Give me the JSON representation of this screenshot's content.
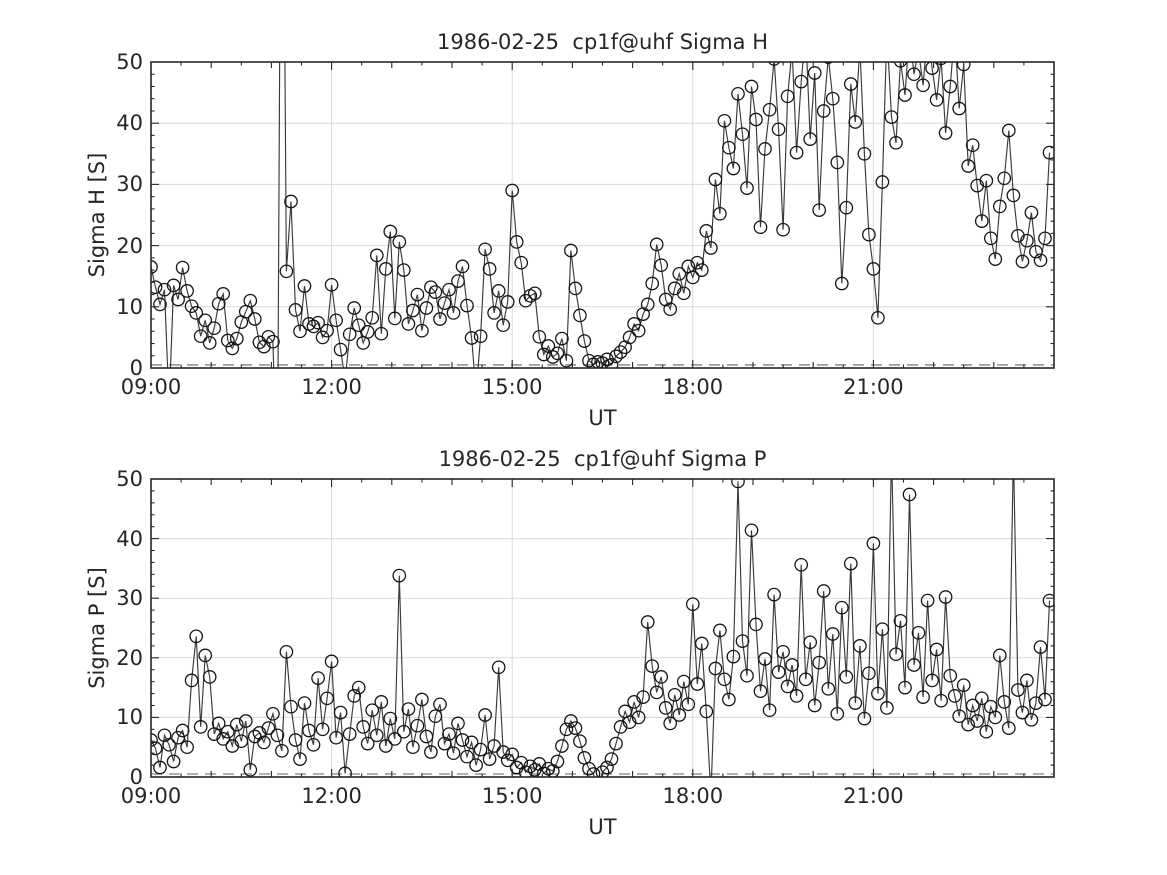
{
  "figure": {
    "background": "#ffffff"
  },
  "style": {
    "axis_color": "#262626",
    "text_color": "#262626",
    "grid_color": "#d9d9d9",
    "line_color": "#3a3a3a",
    "marker_color": "#151515",
    "baseline_color": "#808080",
    "background": "#ffffff"
  },
  "chart_data": [
    {
      "type": "line",
      "title": "1986-02-25  cp1f@uhf Sigma H",
      "xlabel": "UT",
      "ylabel": "Sigma H [S]",
      "xlim_hours": [
        9,
        24
      ],
      "ylim": [
        0,
        50
      ],
      "xticks": {
        "hours": [
          9,
          12,
          15,
          18,
          21
        ],
        "labels": [
          "09:00",
          "12:00",
          "15:00",
          "18:00",
          "21:00"
        ],
        "minor_step_hours": 0.5
      },
      "yticks": {
        "values": [
          0,
          10,
          20,
          30,
          40,
          50
        ],
        "labels": [
          "0",
          "10",
          "20",
          "30",
          "40",
          "50"
        ],
        "minor_step": 2
      },
      "grid": {
        "x_hours": [
          12,
          15,
          18,
          21
        ],
        "y_values": [
          10,
          20,
          30,
          40
        ]
      },
      "baseline_dashed_y": 0.5,
      "marker": "open-circle",
      "legend": null,
      "series": [
        {
          "name": "Sigma H",
          "x_start_hour": 9.0,
          "x_step_hours": 0.075,
          "y": [
            16.5,
            13.2,
            10.4,
            12.8,
            -6,
            13.5,
            11.2,
            16.4,
            12.6,
            10.1,
            9.0,
            5.2,
            7.8,
            4.1,
            6.5,
            10.5,
            12.1,
            4.5,
            3.2,
            4.8,
            7.5,
            9.2,
            11.0,
            8.0,
            4.2,
            3.5,
            5.1,
            4.3,
            -20,
            120,
            15.8,
            27.2,
            9.5,
            6.0,
            13.4,
            7.2,
            6.8,
            7.4,
            5.0,
            6.1,
            13.6,
            7.8,
            3.0,
            -2,
            5.5,
            9.8,
            7.0,
            4.1,
            5.9,
            8.2,
            18.4,
            5.6,
            16.2,
            22.3,
            8.1,
            20.6,
            16.0,
            7.2,
            9.4,
            12.0,
            6.1,
            9.8,
            13.2,
            12.4,
            8.0,
            10.6,
            12.8,
            9.0,
            14.2,
            16.6,
            10.2,
            4.9,
            -4,
            5.2,
            19.4,
            16.2,
            9.0,
            12.6,
            7.0,
            10.8,
            29.0,
            20.6,
            17.2,
            11.0,
            11.8,
            12.2,
            5.1,
            2.2,
            3.6,
            1.8,
            2.4,
            4.8,
            1.2,
            19.2,
            13.0,
            8.6,
            4.4,
            1.2,
            0.6,
            1.0,
            0.8,
            1.4,
            0.5,
            1.9,
            2.6,
            3.4,
            5.0,
            7.2,
            6.1,
            8.8,
            10.4,
            13.8,
            20.2,
            16.8,
            11.2,
            9.6,
            13.0,
            15.4,
            12.2,
            16.6,
            14.8,
            17.2,
            16.0,
            22.4,
            19.6,
            30.8,
            25.2,
            40.4,
            36.0,
            32.6,
            44.8,
            38.2,
            29.4,
            46.0,
            40.6,
            23.0,
            35.8,
            42.2,
            50.5,
            39.0,
            22.6,
            44.4,
            52.0,
            35.2,
            46.8,
            55.0,
            37.4,
            48.2,
            25.8,
            42.0,
            50.8,
            44.0,
            33.6,
            13.8,
            26.2,
            46.4,
            40.2,
            52.5,
            35.0,
            21.8,
            16.2,
            8.2,
            30.4,
            55.0,
            41.0,
            36.8,
            50.2,
            44.6,
            55.0,
            48.0,
            52.0,
            46.2,
            55.0,
            49.0,
            43.8,
            50.6,
            38.4,
            46.0,
            55.0,
            42.4,
            49.6,
            33.0,
            36.4,
            29.8,
            24.0,
            30.6,
            21.2,
            17.8,
            26.4,
            31.0,
            38.8,
            28.2,
            21.6,
            17.4,
            20.8,
            25.4,
            19.0,
            17.6,
            21.2,
            35.2
          ]
        }
      ]
    },
    {
      "type": "line",
      "title": "1986-02-25  cp1f@uhf Sigma P",
      "xlabel": "UT",
      "ylabel": "Sigma P [S]",
      "xlim_hours": [
        9,
        24
      ],
      "ylim": [
        0,
        50
      ],
      "xticks": {
        "hours": [
          9,
          12,
          15,
          18,
          21
        ],
        "labels": [
          "09:00",
          "12:00",
          "15:00",
          "18:00",
          "21:00"
        ],
        "minor_step_hours": 0.5
      },
      "yticks": {
        "values": [
          0,
          10,
          20,
          30,
          40,
          50
        ],
        "labels": [
          "0",
          "10",
          "20",
          "30",
          "40",
          "50"
        ],
        "minor_step": 2
      },
      "grid": {
        "x_hours": [
          12,
          15,
          18,
          21
        ],
        "y_values": [
          10,
          20,
          30,
          40
        ]
      },
      "baseline_dashed_y": 0.5,
      "marker": "open-circle",
      "legend": null,
      "series": [
        {
          "name": "Sigma P",
          "x_start_hour": 9.0,
          "x_step_hours": 0.075,
          "y": [
            6.2,
            4.8,
            1.6,
            7.0,
            5.4,
            2.6,
            6.6,
            7.8,
            5.0,
            16.2,
            23.6,
            8.4,
            20.4,
            16.8,
            7.2,
            9.0,
            6.4,
            7.6,
            5.2,
            8.8,
            6.0,
            9.4,
            1.2,
            6.8,
            7.4,
            5.8,
            8.2,
            10.6,
            7.0,
            4.4,
            21.0,
            11.8,
            6.2,
            3.0,
            12.4,
            7.8,
            5.4,
            16.6,
            8.0,
            13.2,
            19.4,
            6.6,
            10.8,
            0.6,
            7.2,
            13.6,
            15.0,
            8.4,
            5.6,
            11.2,
            7.0,
            12.6,
            5.2,
            9.8,
            6.4,
            33.8,
            7.6,
            11.4,
            5.0,
            8.6,
            13.0,
            6.8,
            4.2,
            10.2,
            12.2,
            5.6,
            7.2,
            4.0,
            9.0,
            6.2,
            3.4,
            5.8,
            2.0,
            4.6,
            10.4,
            3.0,
            5.2,
            18.4,
            4.2,
            2.8,
            3.8,
            1.6,
            2.4,
            0.8,
            1.8,
            1.2,
            2.2,
            0.6,
            1.4,
            1.0,
            2.6,
            5.2,
            8.0,
            9.4,
            8.2,
            6.0,
            3.2,
            1.4,
            0.5,
            -2,
            0.8,
            1.6,
            3.0,
            5.6,
            8.4,
            11.0,
            9.2,
            12.6,
            10.0,
            13.4,
            26.0,
            18.6,
            14.2,
            16.8,
            11.6,
            9.0,
            13.8,
            10.4,
            16.0,
            12.2,
            29.0,
            15.6,
            22.4,
            11.0,
            -3,
            18.2,
            24.6,
            16.4,
            13.0,
            20.2,
            49.6,
            22.8,
            17.0,
            41.4,
            25.6,
            14.4,
            19.8,
            11.2,
            30.6,
            17.6,
            21.0,
            15.2,
            18.8,
            13.6,
            35.6,
            16.4,
            22.6,
            12.0,
            19.2,
            31.2,
            14.8,
            24.0,
            10.6,
            28.4,
            16.8,
            35.8,
            12.4,
            22.0,
            9.8,
            17.4,
            39.2,
            14.0,
            24.8,
            11.6,
            55.0,
            20.6,
            26.2,
            15.0,
            47.4,
            18.8,
            24.2,
            13.4,
            29.6,
            16.2,
            21.4,
            12.8,
            30.2,
            17.0,
            13.6,
            10.2,
            15.4,
            8.8,
            12.0,
            9.4,
            13.2,
            7.6,
            11.8,
            10.0,
            20.4,
            12.6,
            8.2,
            55.0,
            14.6,
            10.8,
            16.2,
            9.6,
            12.4,
            21.8,
            13.0,
            29.6
          ]
        }
      ]
    }
  ]
}
